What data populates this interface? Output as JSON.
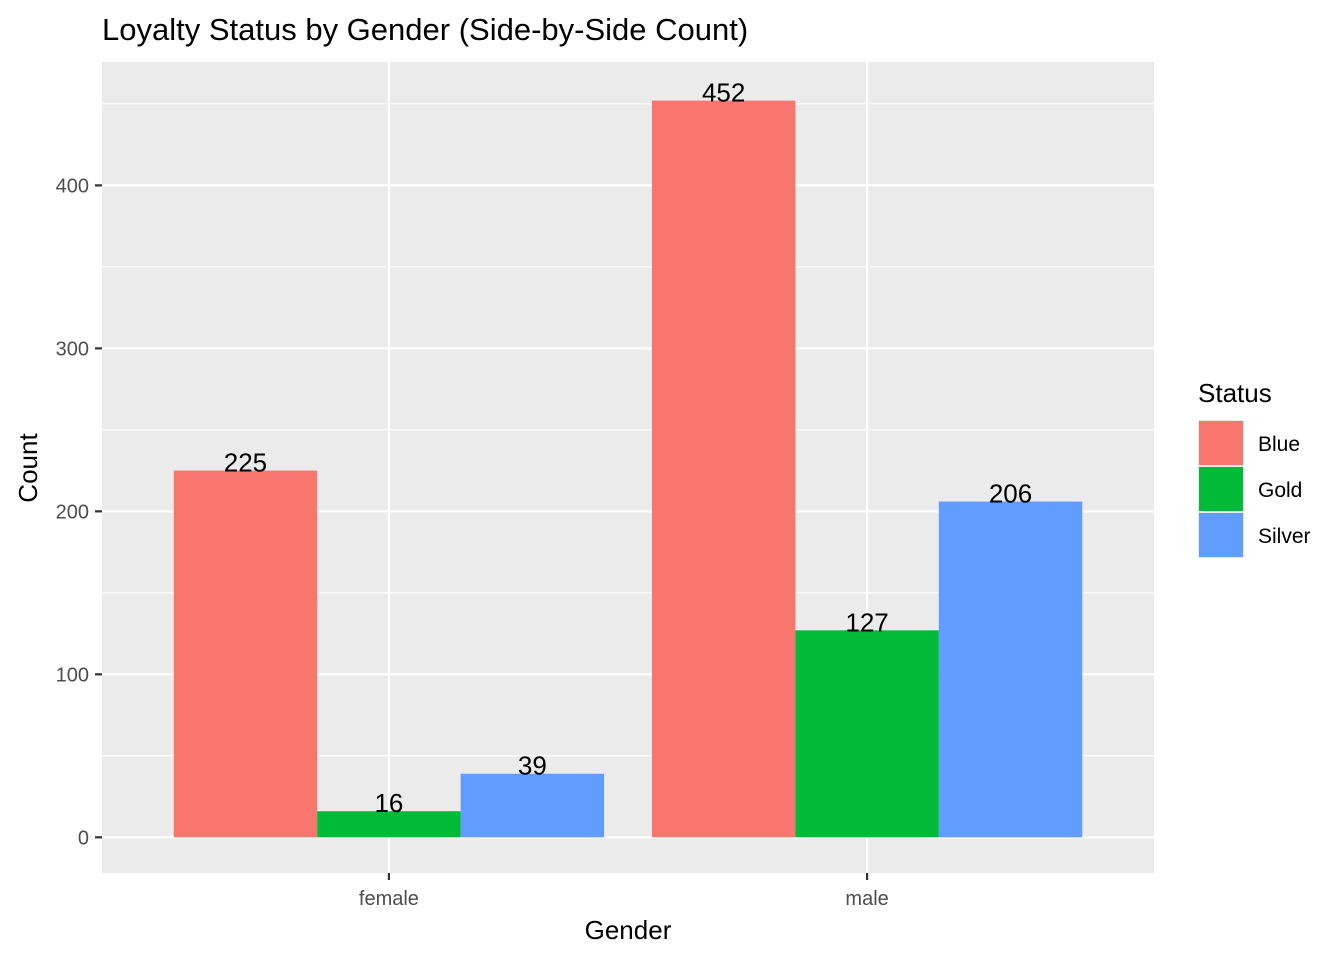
{
  "chart_data": {
    "type": "bar",
    "title": "Loyalty Status by Gender (Side-by-Side Count)",
    "xlabel": "Gender",
    "ylabel": "Count",
    "categories": [
      "female",
      "male"
    ],
    "series": [
      {
        "name": "Blue",
        "color": "#F8766D",
        "values": [
          225,
          452
        ]
      },
      {
        "name": "Gold",
        "color": "#00BA38",
        "values": [
          16,
          127
        ]
      },
      {
        "name": "Silver",
        "color": "#619CFF",
        "values": [
          39,
          206
        ]
      }
    ],
    "data_labels": [
      [
        "225",
        "452"
      ],
      [
        "16",
        "127"
      ],
      [
        "39",
        "206"
      ]
    ],
    "ylim": [
      -21.9,
      475.7
    ],
    "yticks": [
      0,
      100,
      200,
      300,
      400
    ],
    "ytick_labels": [
      "0",
      "100",
      "200",
      "300",
      "400"
    ],
    "grid": true,
    "legend": {
      "title": "Status",
      "position": "right",
      "entries": [
        "Blue",
        "Gold",
        "Silver"
      ]
    },
    "panel_background": "#EBEBEB",
    "grid_color": "#FFFFFF"
  }
}
